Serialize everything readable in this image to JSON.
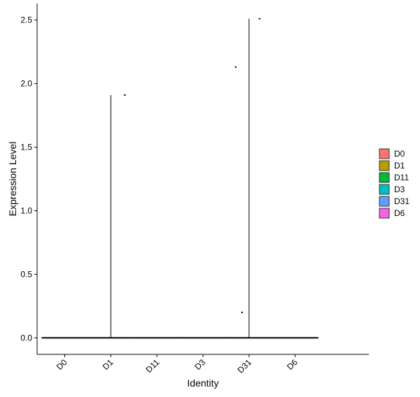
{
  "chart_data": {
    "type": "violin",
    "x_label": "Identity",
    "y_label": "Expression Level",
    "categories": [
      "D0",
      "D1",
      "D11",
      "D3",
      "D31",
      "D6"
    ],
    "values": [
      0,
      1.91,
      0,
      0,
      2.51,
      0
    ],
    "colors": [
      "#F8766D",
      "#B79F00",
      "#00BA38",
      "#00BFC4",
      "#619CFF",
      "#F564E3"
    ],
    "points": [
      [],
      [
        1.91
      ],
      [],
      [],
      [
        2.13,
        0.2,
        2.51
      ],
      []
    ],
    "ylim": [
      -0.13,
      2.63
    ],
    "yticks": [
      {
        "value": 0,
        "label": "0.0"
      },
      {
        "value": 0.5,
        "label": "0.5"
      },
      {
        "value": 1,
        "label": "1.0"
      },
      {
        "value": 1.5,
        "label": "1.5"
      },
      {
        "value": 2,
        "label": "2.0"
      },
      {
        "value": 2.5,
        "label": "2.5"
      }
    ],
    "legend": "right"
  }
}
